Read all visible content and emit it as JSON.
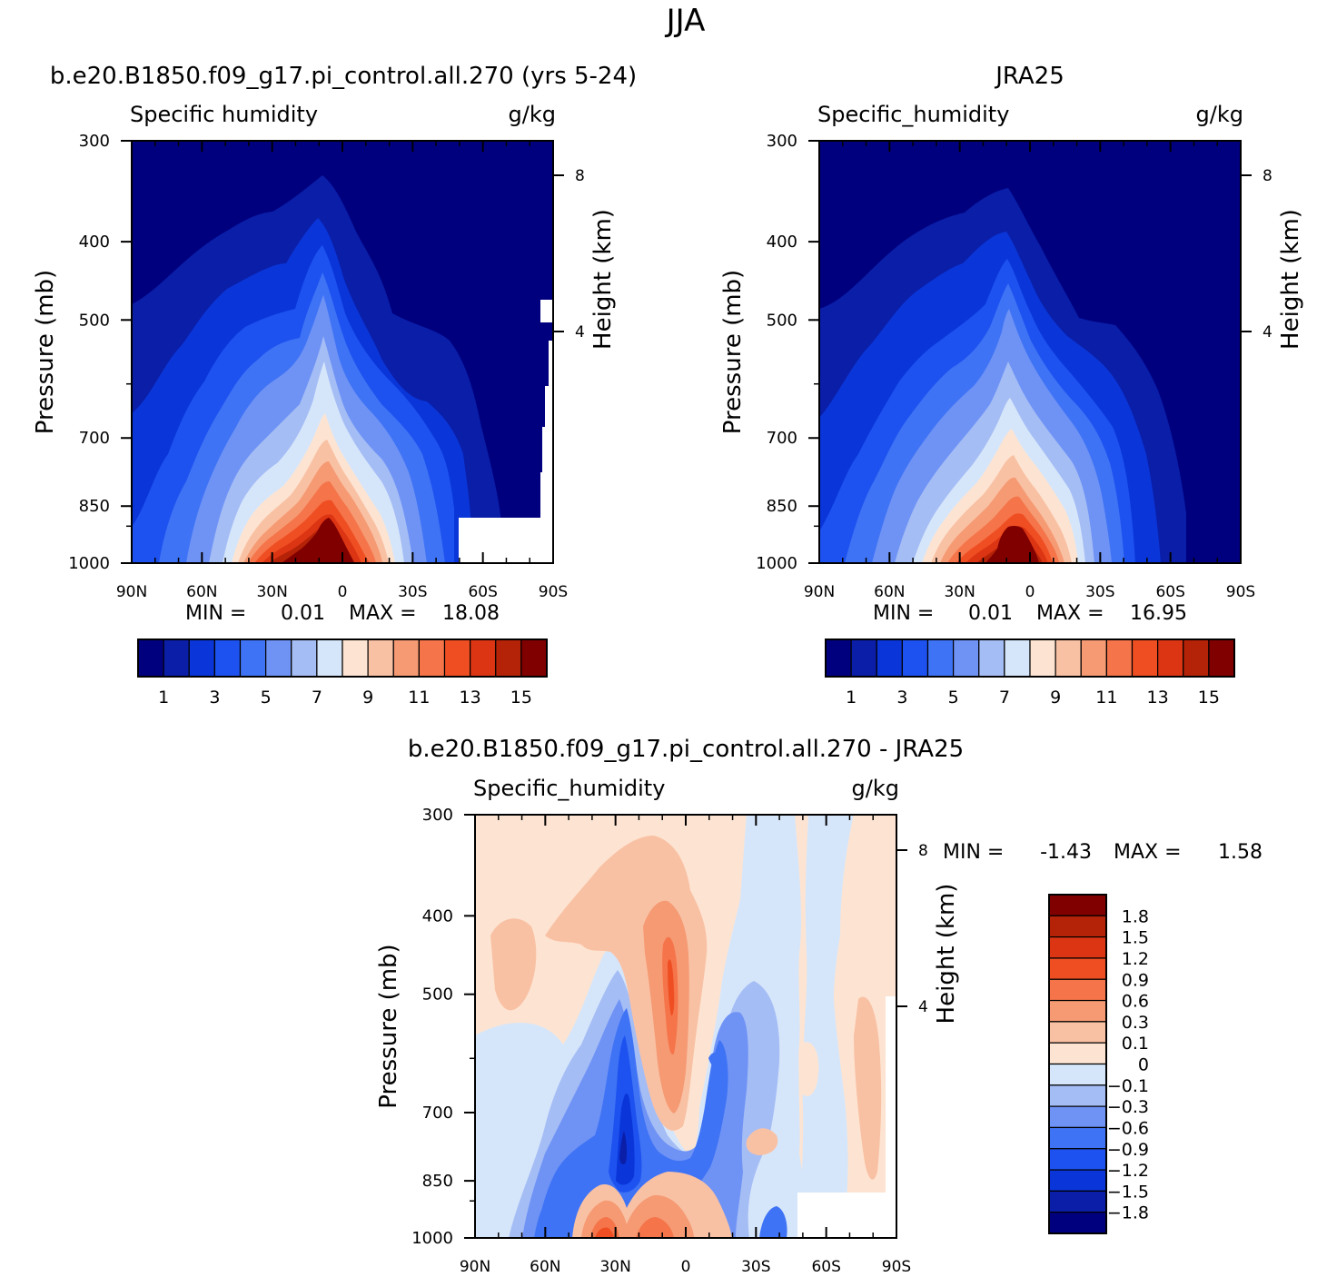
{
  "figure_title": "JJA",
  "chart_data": [
    {
      "type": "heatmap",
      "title": "b.e20.B1850.f09_g17.pi_control.all.270 (yrs 5-24)",
      "variable": "Specific humidity",
      "units": "g/kg",
      "xlabel": "",
      "ylabel": "Pressure (mb)",
      "ylabel_right": "Height (km)",
      "x_ticks": [
        "90N",
        "60N",
        "30N",
        "0",
        "30S",
        "60S",
        "90S"
      ],
      "y_ticks": [
        "300",
        "400",
        "500",
        "700",
        "850",
        "1000"
      ],
      "y_ticks_right": [
        "8",
        "4"
      ],
      "min_label": "MIN =",
      "min_value": "0.01",
      "max_label": "MAX =",
      "max_value": "18.08",
      "levels": [
        1,
        2,
        3,
        4,
        5,
        6,
        7,
        8,
        9,
        10,
        11,
        12,
        13,
        14,
        15
      ],
      "colorbar_labels": [
        "1",
        "3",
        "5",
        "7",
        "9",
        "11",
        "13",
        "15"
      ],
      "peak_latitude": "~10N",
      "peak_pressure_mb": 1000,
      "peak_value": 18.08
    },
    {
      "type": "heatmap",
      "title": "JRA25",
      "variable": "Specific_humidity",
      "units": "g/kg",
      "xlabel": "",
      "ylabel": "Pressure (mb)",
      "ylabel_right": "Height (km)",
      "x_ticks": [
        "90N",
        "60N",
        "30N",
        "0",
        "30S",
        "60S",
        "90S"
      ],
      "y_ticks": [
        "300",
        "400",
        "500",
        "700",
        "850",
        "1000"
      ],
      "y_ticks_right": [
        "8",
        "4"
      ],
      "min_label": "MIN =",
      "min_value": "0.01",
      "max_label": "MAX =",
      "max_value": "16.95",
      "levels": [
        1,
        2,
        3,
        4,
        5,
        6,
        7,
        8,
        9,
        10,
        11,
        12,
        13,
        14,
        15
      ],
      "colorbar_labels": [
        "1",
        "3",
        "5",
        "7",
        "9",
        "11",
        "13",
        "15"
      ],
      "peak_latitude": "~10N",
      "peak_pressure_mb": 1000,
      "peak_value": 16.95
    },
    {
      "type": "heatmap",
      "title": "b.e20.B1850.f09_g17.pi_control.all.270 - JRA25",
      "variable": "Specific_humidity",
      "units": "g/kg",
      "xlabel": "",
      "ylabel": "Pressure (mb)",
      "ylabel_right": "Height (km)",
      "x_ticks": [
        "90N",
        "60N",
        "30N",
        "0",
        "30S",
        "60S",
        "90S"
      ],
      "y_ticks": [
        "300",
        "400",
        "500",
        "700",
        "850",
        "1000"
      ],
      "y_ticks_right": [
        "8",
        "4"
      ],
      "min_label": "MIN =",
      "min_value": "-1.43",
      "max_label": "MAX =",
      "max_value": "1.58",
      "levels": [
        -1.8,
        -1.5,
        -1.2,
        -0.9,
        -0.6,
        -0.3,
        -0.1,
        0,
        0.1,
        0.3,
        0.6,
        0.9,
        1.2,
        1.5,
        1.8
      ],
      "colorbar_labels": [
        "1.8",
        "1.5",
        "1.2",
        "0.9",
        "0.6",
        "0.3",
        "0.1",
        "0",
        "-0.1",
        "-0.3",
        "-0.6",
        "-0.9",
        "-1.2",
        "-1.5",
        "-1.8"
      ]
    }
  ],
  "colors": {
    "seq": [
      "#00007f",
      "#0a1ea8",
      "#0a36d9",
      "#1d52f0",
      "#3f73f5",
      "#6f93f5",
      "#a5bdf5",
      "#d6e6fa",
      "#fde4d2",
      "#f9c1a4",
      "#f59a73",
      "#f5744a",
      "#ef4e22",
      "#dc3514",
      "#b42207",
      "#800000"
    ],
    "div": [
      "#00007f",
      "#0a1ea8",
      "#0a36d9",
      "#1d52f0",
      "#3f73f5",
      "#6f93f5",
      "#a5bdf5",
      "#d6e6fa",
      "#fde4d2",
      "#f9c1a4",
      "#f59a73",
      "#f5744a",
      "#ef4e22",
      "#dc3514",
      "#b42207",
      "#800000"
    ]
  }
}
